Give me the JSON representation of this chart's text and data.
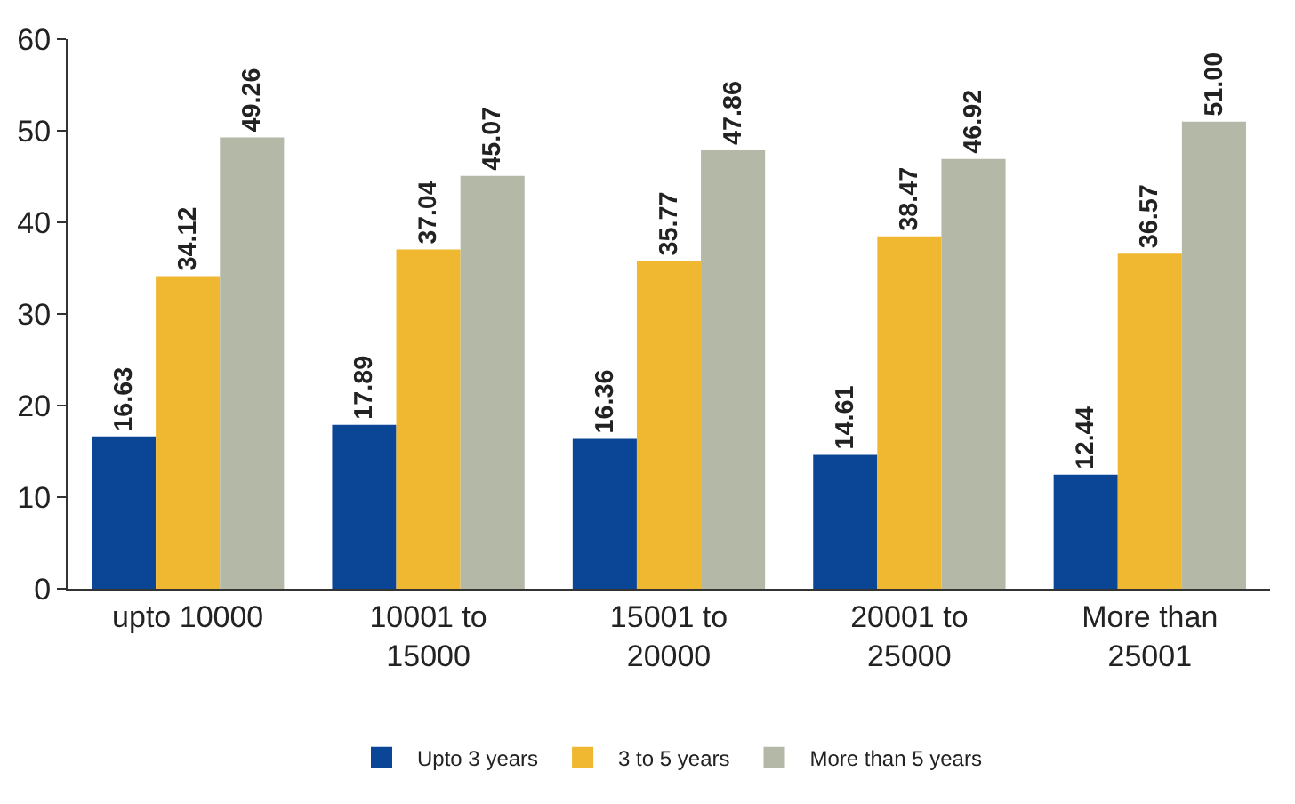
{
  "chart_data": {
    "type": "bar",
    "categories": [
      "upto 10000",
      "10001 to 15000",
      "15001 to 20000",
      "20001 to 25000",
      "More than 25001"
    ],
    "series": [
      {
        "name": "Upto 3 years",
        "color": "#0b4595",
        "values": [
          16.63,
          17.89,
          16.36,
          14.61,
          12.44
        ],
        "value_labels": [
          "16.63",
          "17.89",
          "16.36",
          "14.61",
          "12.44"
        ]
      },
      {
        "name": "3 to 5 years",
        "color": "#f0b731",
        "values": [
          34.12,
          37.04,
          35.77,
          38.47,
          36.57
        ],
        "value_labels": [
          "34.12",
          "37.04",
          "35.77",
          "38.47",
          "36.57"
        ]
      },
      {
        "name": "More than 5 years",
        "color": "#b4b8a6",
        "values": [
          49.26,
          45.07,
          47.86,
          46.92,
          51.0
        ],
        "value_labels": [
          "49.26",
          "45.07",
          "47.86",
          "46.92",
          "51.00"
        ]
      }
    ],
    "ylim": [
      0,
      60
    ],
    "yticks": [
      0,
      10,
      20,
      30,
      40,
      50,
      60
    ],
    "grid": false,
    "legend": "bottom"
  }
}
